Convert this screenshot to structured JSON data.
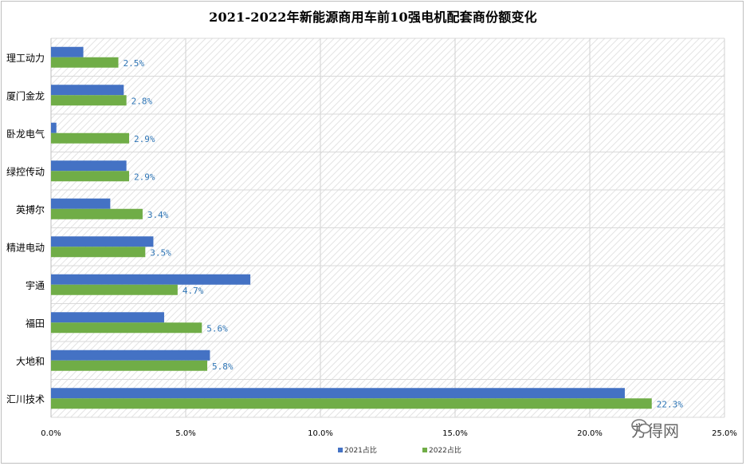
{
  "chart_data": {
    "type": "bar",
    "orientation": "horizontal",
    "title": "2021-2022年新能源商用车前10强电机配套商份额变化",
    "categories": [
      "理工动力",
      "厦门金龙",
      "卧龙电气",
      "绿控传动",
      "英搏尔",
      "精进电动",
      "宇通",
      "福田",
      "大地和",
      "汇川技术"
    ],
    "series": [
      {
        "name": "2021占比",
        "color": "#4472C4",
        "values": [
          1.2,
          2.7,
          0.2,
          2.8,
          2.2,
          3.8,
          7.4,
          4.2,
          5.9,
          21.3
        ]
      },
      {
        "name": "2022占比",
        "color": "#70AD47",
        "values": [
          2.5,
          2.8,
          2.9,
          2.9,
          3.4,
          3.5,
          4.7,
          5.6,
          5.8,
          22.3
        ],
        "data_labels": [
          "2.5%",
          "2.8%",
          "2.9%",
          "2.9%",
          "3.4%",
          "3.5%",
          "4.7%",
          "5.6%",
          "5.8%",
          "22.3%"
        ]
      }
    ],
    "xlim": [
      0,
      25
    ],
    "x_ticks": [
      "0.0%",
      "5.0%",
      "10.0%",
      "15.0%",
      "20.0%",
      "25.0%"
    ],
    "x_tick_values": [
      0,
      5,
      10,
      15,
      20,
      25
    ],
    "grid": true,
    "legend_position": "bottom",
    "label_color": "#2E75B6"
  },
  "watermark": {
    "text": "方得网",
    "icon": "wechat-icon"
  }
}
